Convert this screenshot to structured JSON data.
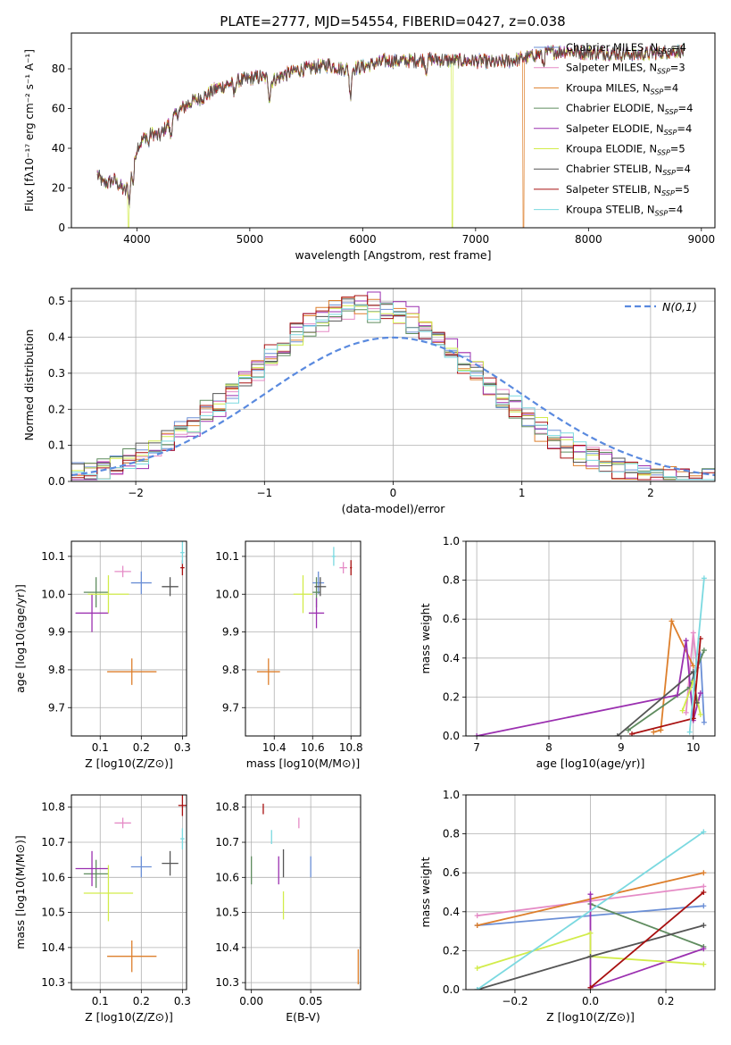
{
  "page_title": "PLATE=2777, MJD=54554, FIBERID=0427, z=0.038",
  "colors": [
    "#6b8fd6",
    "#e58bc6",
    "#dd7f2c",
    "#5f8c5f",
    "#9b30b0",
    "#d2ec4a",
    "#555555",
    "#a81010",
    "#7bd9e0"
  ],
  "chart_data": [
    {
      "id": "spectrum",
      "type": "line",
      "xlabel": "wavelength [Angstrom, rest frame]",
      "ylabel": "Flux [fλ10⁻¹⁷ erg cm⁻² s⁻¹ A⁻¹]",
      "xlim": [
        3420,
        9120
      ],
      "ylim": [
        0,
        98
      ],
      "xticks": [
        4000,
        5000,
        6000,
        7000,
        8000,
        9000
      ],
      "yticks": [
        0,
        20,
        40,
        60,
        80
      ],
      "grid": false,
      "legend_position": "right",
      "continuum": {
        "x": [
          3650,
          3700,
          3800,
          3900,
          4000,
          4100,
          4200,
          4300,
          4400,
          4500,
          4600,
          4700,
          4800,
          4900,
          5000,
          5100,
          5200,
          5300,
          5400,
          5500,
          5600,
          5700,
          5800,
          5900,
          6000,
          6200,
          6400,
          6600,
          6800,
          7000,
          7200,
          7400,
          7600,
          7800,
          8000,
          8200,
          8400,
          8600,
          8800
        ],
        "y": [
          27,
          22,
          24,
          18,
          40,
          48,
          46,
          54,
          60,
          64,
          66,
          70,
          72,
          74,
          75,
          76,
          74,
          77,
          79,
          80,
          81,
          82,
          80,
          80,
          81,
          84,
          84,
          85,
          84,
          84,
          83,
          85,
          88,
          89,
          88,
          88,
          87,
          88,
          89
        ]
      },
      "series": [
        {
          "name": "Chabrier MILES, N_SSP=4",
          "n": "4"
        },
        {
          "name": "Salpeter MILES, N_SSP=3",
          "n": "3"
        },
        {
          "name": "Kroupa MILES, N_SSP=4",
          "n": "4"
        },
        {
          "name": "Chabrier ELODIE, N_SSP=4",
          "n": "4"
        },
        {
          "name": "Salpeter ELODIE, N_SSP=4",
          "n": "4"
        },
        {
          "name": "Kroupa ELODIE, N_SSP=5",
          "n": "5"
        },
        {
          "name": "Chabrier STELIB, N_SSP=4",
          "n": "4"
        },
        {
          "name": "Salpeter STELIB, N_SSP=5",
          "n": "5"
        },
        {
          "name": "Kroupa STELIB, N_SSP=4",
          "n": "4"
        }
      ],
      "dropouts": [
        {
          "series": 5,
          "x_start": 3920,
          "x_end": 3930
        },
        {
          "series": 5,
          "x_start": 6790,
          "x_end": 6800
        },
        {
          "series": 2,
          "x_start": 7420,
          "x_end": 7430
        }
      ]
    },
    {
      "id": "residuals",
      "type": "histogram",
      "xlabel": "(data-model)/error",
      "ylabel": "Normed distribution",
      "xlim": [
        -2.5,
        2.5
      ],
      "ylim": [
        0,
        0.535
      ],
      "xticks": [
        -2,
        -1,
        0,
        1,
        2
      ],
      "xtick_labels": [
        "−2",
        "−1",
        "0",
        "1",
        "2"
      ],
      "yticks": [
        0,
        0.1,
        0.2,
        0.3,
        0.4,
        0.5
      ],
      "ytick_labels": [
        "0.0",
        "0.1",
        "0.2",
        "0.3",
        "0.4",
        "0.5"
      ],
      "grid": true,
      "bin_width": 0.1,
      "reference": {
        "name": "N(0,1)",
        "color": "#5a8adf"
      },
      "legend_position": "top-right"
    },
    {
      "id": "age_vs_Z",
      "type": "errorbar",
      "xlabel": "Z [log10(Z/Z⊙)]",
      "ylabel": "age  [log10(age/yr)]",
      "xlim": [
        0.03,
        0.31
      ],
      "ylim": [
        9.625,
        10.14
      ],
      "xticks": [
        0.1,
        0.2,
        0.3
      ],
      "xtick_labels": [
        "0.1",
        "0.2",
        "0.3"
      ],
      "yticks": [
        9.7,
        9.8,
        9.9,
        10.0,
        10.1
      ],
      "ytick_labels": [
        "9.7",
        "9.8",
        "9.9",
        "10.0",
        "10.1"
      ],
      "grid": true,
      "points": [
        {
          "x": 0.2,
          "y": 10.03,
          "xerr": 0.025,
          "yerr": 0.03,
          "c": 0
        },
        {
          "x": 0.155,
          "y": 10.06,
          "xerr": 0.02,
          "yerr": 0.015,
          "c": 1
        },
        {
          "x": 0.177,
          "y": 9.795,
          "xerr": 0.06,
          "yerr": 0.035,
          "c": 2
        },
        {
          "x": 0.09,
          "y": 10.005,
          "xerr": 0.03,
          "yerr": 0.04,
          "c": 3
        },
        {
          "x": 0.08,
          "y": 9.95,
          "xerr": 0.04,
          "yerr": 0.05,
          "c": 4
        },
        {
          "x": 0.12,
          "y": 10.0,
          "xerr": 0.05,
          "yerr": 0.05,
          "c": 5
        },
        {
          "x": 0.27,
          "y": 10.02,
          "xerr": 0.02,
          "yerr": 0.025,
          "c": 6
        },
        {
          "x": 0.3,
          "y": 10.07,
          "xerr": 0.005,
          "yerr": 0.02,
          "c": 7
        },
        {
          "x": 0.3,
          "y": 10.11,
          "xerr": 0.005,
          "yerr": 0.03,
          "c": 8
        }
      ]
    },
    {
      "id": "age_vs_mass",
      "type": "errorbar",
      "xlabel": "mass [log10(M/M⊙)]",
      "ylabel": "",
      "xlim": [
        10.25,
        10.85
      ],
      "ylim": [
        9.625,
        10.14
      ],
      "xticks": [
        10.4,
        10.6,
        10.8
      ],
      "xtick_labels": [
        "10.4",
        "10.6",
        "10.8"
      ],
      "yticks": [
        9.7,
        9.8,
        9.9,
        10.0,
        10.1
      ],
      "ytick_labels": [
        "9.7",
        "9.8",
        "9.9",
        "10.0",
        "10.1"
      ],
      "grid": true,
      "points": [
        {
          "x": 10.63,
          "y": 10.03,
          "xerr": 0.03,
          "yerr": 0.03,
          "c": 0
        },
        {
          "x": 10.76,
          "y": 10.07,
          "xerr": 0.02,
          "yerr": 0.015,
          "c": 1
        },
        {
          "x": 10.37,
          "y": 9.795,
          "xerr": 0.06,
          "yerr": 0.035,
          "c": 2
        },
        {
          "x": 10.62,
          "y": 10.005,
          "xerr": 0.02,
          "yerr": 0.04,
          "c": 3
        },
        {
          "x": 10.62,
          "y": 9.95,
          "xerr": 0.04,
          "yerr": 0.04,
          "c": 4
        },
        {
          "x": 10.55,
          "y": 10.0,
          "xerr": 0.05,
          "yerr": 0.05,
          "c": 5
        },
        {
          "x": 10.64,
          "y": 10.02,
          "xerr": 0.03,
          "yerr": 0.025,
          "c": 6
        },
        {
          "x": 10.8,
          "y": 10.07,
          "xerr": 0.005,
          "yerr": 0.02,
          "c": 7
        },
        {
          "x": 10.71,
          "y": 10.1,
          "xerr": 0.01,
          "yerr": 0.025,
          "c": 8
        }
      ]
    },
    {
      "id": "weight_vs_age",
      "type": "line",
      "xlabel": "age  [log10(age/yr)]",
      "ylabel": "mass weight",
      "xlim": [
        6.85,
        10.3
      ],
      "ylim": [
        0,
        1.0
      ],
      "xticks": [
        7,
        8,
        9,
        10
      ],
      "xtick_labels": [
        "7",
        "8",
        "9",
        "10"
      ],
      "yticks": [
        0,
        0.2,
        0.4,
        0.6,
        0.8,
        1.0
      ],
      "ytick_labels": [
        "0.0",
        "0.2",
        "0.4",
        "0.6",
        "0.8",
        "1.0"
      ],
      "grid": true,
      "series": [
        {
          "c": 0,
          "x": [
            9.95,
            10.1,
            10.15
          ],
          "y": [
            0.25,
            0.42,
            0.07
          ]
        },
        {
          "c": 1,
          "x": [
            9.9,
            10.0,
            10.05
          ],
          "y": [
            0.12,
            0.53,
            0.35
          ]
        },
        {
          "c": 2,
          "x": [
            9.45,
            9.55,
            9.7,
            10.0
          ],
          "y": [
            0.02,
            0.03,
            0.59,
            0.36
          ]
        },
        {
          "c": 3,
          "x": [
            9.1,
            9.95,
            10.15
          ],
          "y": [
            0.03,
            0.25,
            0.44
          ]
        },
        {
          "c": 4,
          "x": [
            7.0,
            9.78,
            9.9,
            10.0,
            10.1
          ],
          "y": [
            0.0,
            0.21,
            0.49,
            0.08,
            0.22
          ]
        },
        {
          "c": 5,
          "x": [
            9.85,
            10.0,
            10.1
          ],
          "y": [
            0.13,
            0.28,
            0.11
          ]
        },
        {
          "c": 6,
          "x": [
            8.95,
            10.0,
            10.05
          ],
          "y": [
            0.0,
            0.33,
            0.17
          ]
        },
        {
          "c": 7,
          "x": [
            9.15,
            10.0,
            10.1
          ],
          "y": [
            0.01,
            0.09,
            0.5
          ]
        },
        {
          "c": 8,
          "x": [
            9.95,
            10.15
          ],
          "y": [
            0.02,
            0.81
          ]
        }
      ]
    },
    {
      "id": "mass_vs_Z",
      "type": "errorbar",
      "xlabel": "Z [log10(Z/Z⊙)]",
      "ylabel": "mass [log10(M/M⊙)]",
      "xlim": [
        0.03,
        0.31
      ],
      "ylim": [
        10.28,
        10.835
      ],
      "xticks": [
        0.1,
        0.2,
        0.3
      ],
      "xtick_labels": [
        "0.1",
        "0.2",
        "0.3"
      ],
      "yticks": [
        10.3,
        10.4,
        10.5,
        10.6,
        10.7,
        10.8
      ],
      "ytick_labels": [
        "10.3",
        "10.4",
        "10.5",
        "10.6",
        "10.7",
        "10.8"
      ],
      "grid": true,
      "points": [
        {
          "x": 0.2,
          "y": 10.63,
          "xerr": 0.025,
          "yerr": 0.03,
          "c": 0
        },
        {
          "x": 0.155,
          "y": 10.755,
          "xerr": 0.02,
          "yerr": 0.015,
          "c": 1
        },
        {
          "x": 0.177,
          "y": 10.375,
          "xerr": 0.06,
          "yerr": 0.045,
          "c": 2
        },
        {
          "x": 0.09,
          "y": 10.61,
          "xerr": 0.03,
          "yerr": 0.04,
          "c": 3
        },
        {
          "x": 0.08,
          "y": 10.625,
          "xerr": 0.04,
          "yerr": 0.05,
          "c": 4
        },
        {
          "x": 0.12,
          "y": 10.555,
          "xerr": 0.06,
          "yerr": 0.08,
          "c": 5
        },
        {
          "x": 0.27,
          "y": 10.64,
          "xerr": 0.02,
          "yerr": 0.035,
          "c": 6
        },
        {
          "x": 0.3,
          "y": 10.805,
          "xerr": 0.01,
          "yerr": 0.03,
          "c": 7
        },
        {
          "x": 0.3,
          "y": 10.71,
          "xerr": 0.005,
          "yerr": 0.03,
          "c": 8
        }
      ]
    },
    {
      "id": "mass_vs_ebv",
      "type": "errorbar",
      "xlabel": "E(B-V)",
      "ylabel": "",
      "xlim": [
        -0.005,
        0.092
      ],
      "ylim": [
        10.28,
        10.835
      ],
      "xticks": [
        0.0,
        0.05
      ],
      "xtick_labels": [
        "0.00",
        "0.05"
      ],
      "yticks": [
        10.3,
        10.4,
        10.5,
        10.6,
        10.7,
        10.8
      ],
      "ytick_labels": [
        "10.3",
        "10.4",
        "10.5",
        "10.6",
        "10.7",
        "10.8"
      ],
      "grid": true,
      "points": [
        {
          "x": 0.05,
          "y": 10.63,
          "xerr": 0,
          "yerr": 0.03,
          "c": 0
        },
        {
          "x": 0.04,
          "y": 10.755,
          "xerr": 0,
          "yerr": 0.015,
          "c": 1
        },
        {
          "x": 0.09,
          "y": 10.345,
          "xerr": 0,
          "yerr": 0.05,
          "c": 2
        },
        {
          "x": 0.0,
          "y": 10.62,
          "xerr": 0,
          "yerr": 0.04,
          "c": 3
        },
        {
          "x": 0.023,
          "y": 10.62,
          "xerr": 0,
          "yerr": 0.04,
          "c": 4
        },
        {
          "x": 0.027,
          "y": 10.52,
          "xerr": 0,
          "yerr": 0.04,
          "c": 5
        },
        {
          "x": 0.027,
          "y": 10.64,
          "xerr": 0,
          "yerr": 0.04,
          "c": 6
        },
        {
          "x": 0.01,
          "y": 10.795,
          "xerr": 0,
          "yerr": 0.015,
          "c": 7
        },
        {
          "x": 0.017,
          "y": 10.715,
          "xerr": 0,
          "yerr": 0.02,
          "c": 8
        }
      ]
    },
    {
      "id": "weight_vs_Z",
      "type": "line",
      "xlabel": "Z [log10(Z/Z⊙)]",
      "ylabel": "mass weight",
      "xlim": [
        -0.33,
        0.33
      ],
      "ylim": [
        0,
        1.0
      ],
      "xticks": [
        -0.2,
        0.0,
        0.2
      ],
      "xtick_labels": [
        "−0.2",
        "0.0",
        "0.2"
      ],
      "yticks": [
        0,
        0.2,
        0.4,
        0.6,
        0.8,
        1.0
      ],
      "ytick_labels": [
        "0.0",
        "0.2",
        "0.4",
        "0.6",
        "0.8",
        "1.0"
      ],
      "grid": true,
      "series": [
        {
          "c": 0,
          "x": [
            -0.3,
            0.3
          ],
          "y": [
            0.33,
            0.43
          ]
        },
        {
          "c": 1,
          "x": [
            -0.3,
            0.3
          ],
          "y": [
            0.38,
            0.53
          ]
        },
        {
          "c": 2,
          "x": [
            -0.3,
            0.3
          ],
          "y": [
            0.33,
            0.6
          ]
        },
        {
          "c": 3,
          "x": [
            0.0,
            0.3
          ],
          "y": [
            0.44,
            0.22
          ]
        },
        {
          "c": 4,
          "x": [
            0.0,
            0.0,
            0.3
          ],
          "y": [
            0.49,
            0.01,
            0.21
          ]
        },
        {
          "c": 5,
          "x": [
            -0.3,
            0.0,
            0.0,
            0.3
          ],
          "y": [
            0.11,
            0.29,
            0.17,
            0.13
          ]
        },
        {
          "c": 6,
          "x": [
            -0.3,
            0.0,
            0.3
          ],
          "y": [
            0.0,
            0.17,
            0.33
          ]
        },
        {
          "c": 7,
          "x": [
            0.0,
            0.3
          ],
          "y": [
            0.01,
            0.5
          ]
        },
        {
          "c": 8,
          "x": [
            -0.3,
            0.3
          ],
          "y": [
            0.0,
            0.81
          ]
        }
      ]
    }
  ]
}
